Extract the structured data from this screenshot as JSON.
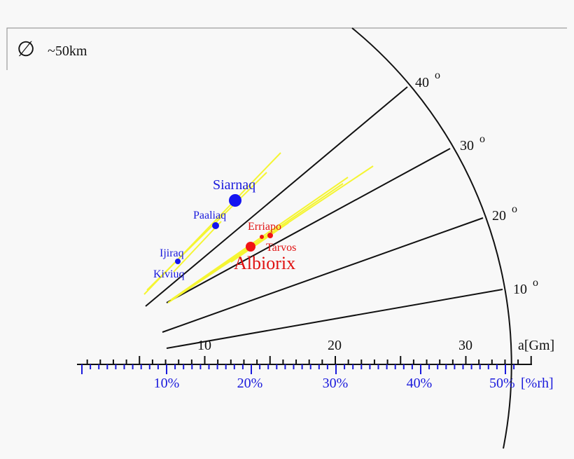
{
  "legend": {
    "symbol": "∅",
    "label": "~50km"
  },
  "inclinations": [
    "40",
    "30",
    "20",
    "10"
  ],
  "degree_mark": "o",
  "a_axis": {
    "ticks": [
      "10",
      "20",
      "30"
    ],
    "label": "a[Gm]"
  },
  "rh_axis": {
    "ticks": [
      "10%",
      "20%",
      "30%",
      "40%",
      "50%"
    ],
    "unit": "[%rh]"
  },
  "moons": [
    {
      "name": "Siarnaq"
    },
    {
      "name": "Paaliaq"
    },
    {
      "name": "Ijiraq"
    },
    {
      "name": "Kiviuq"
    },
    {
      "name": "Erriapo"
    },
    {
      "name": "Tarvos"
    },
    {
      "name": "Albiorix"
    }
  ]
}
